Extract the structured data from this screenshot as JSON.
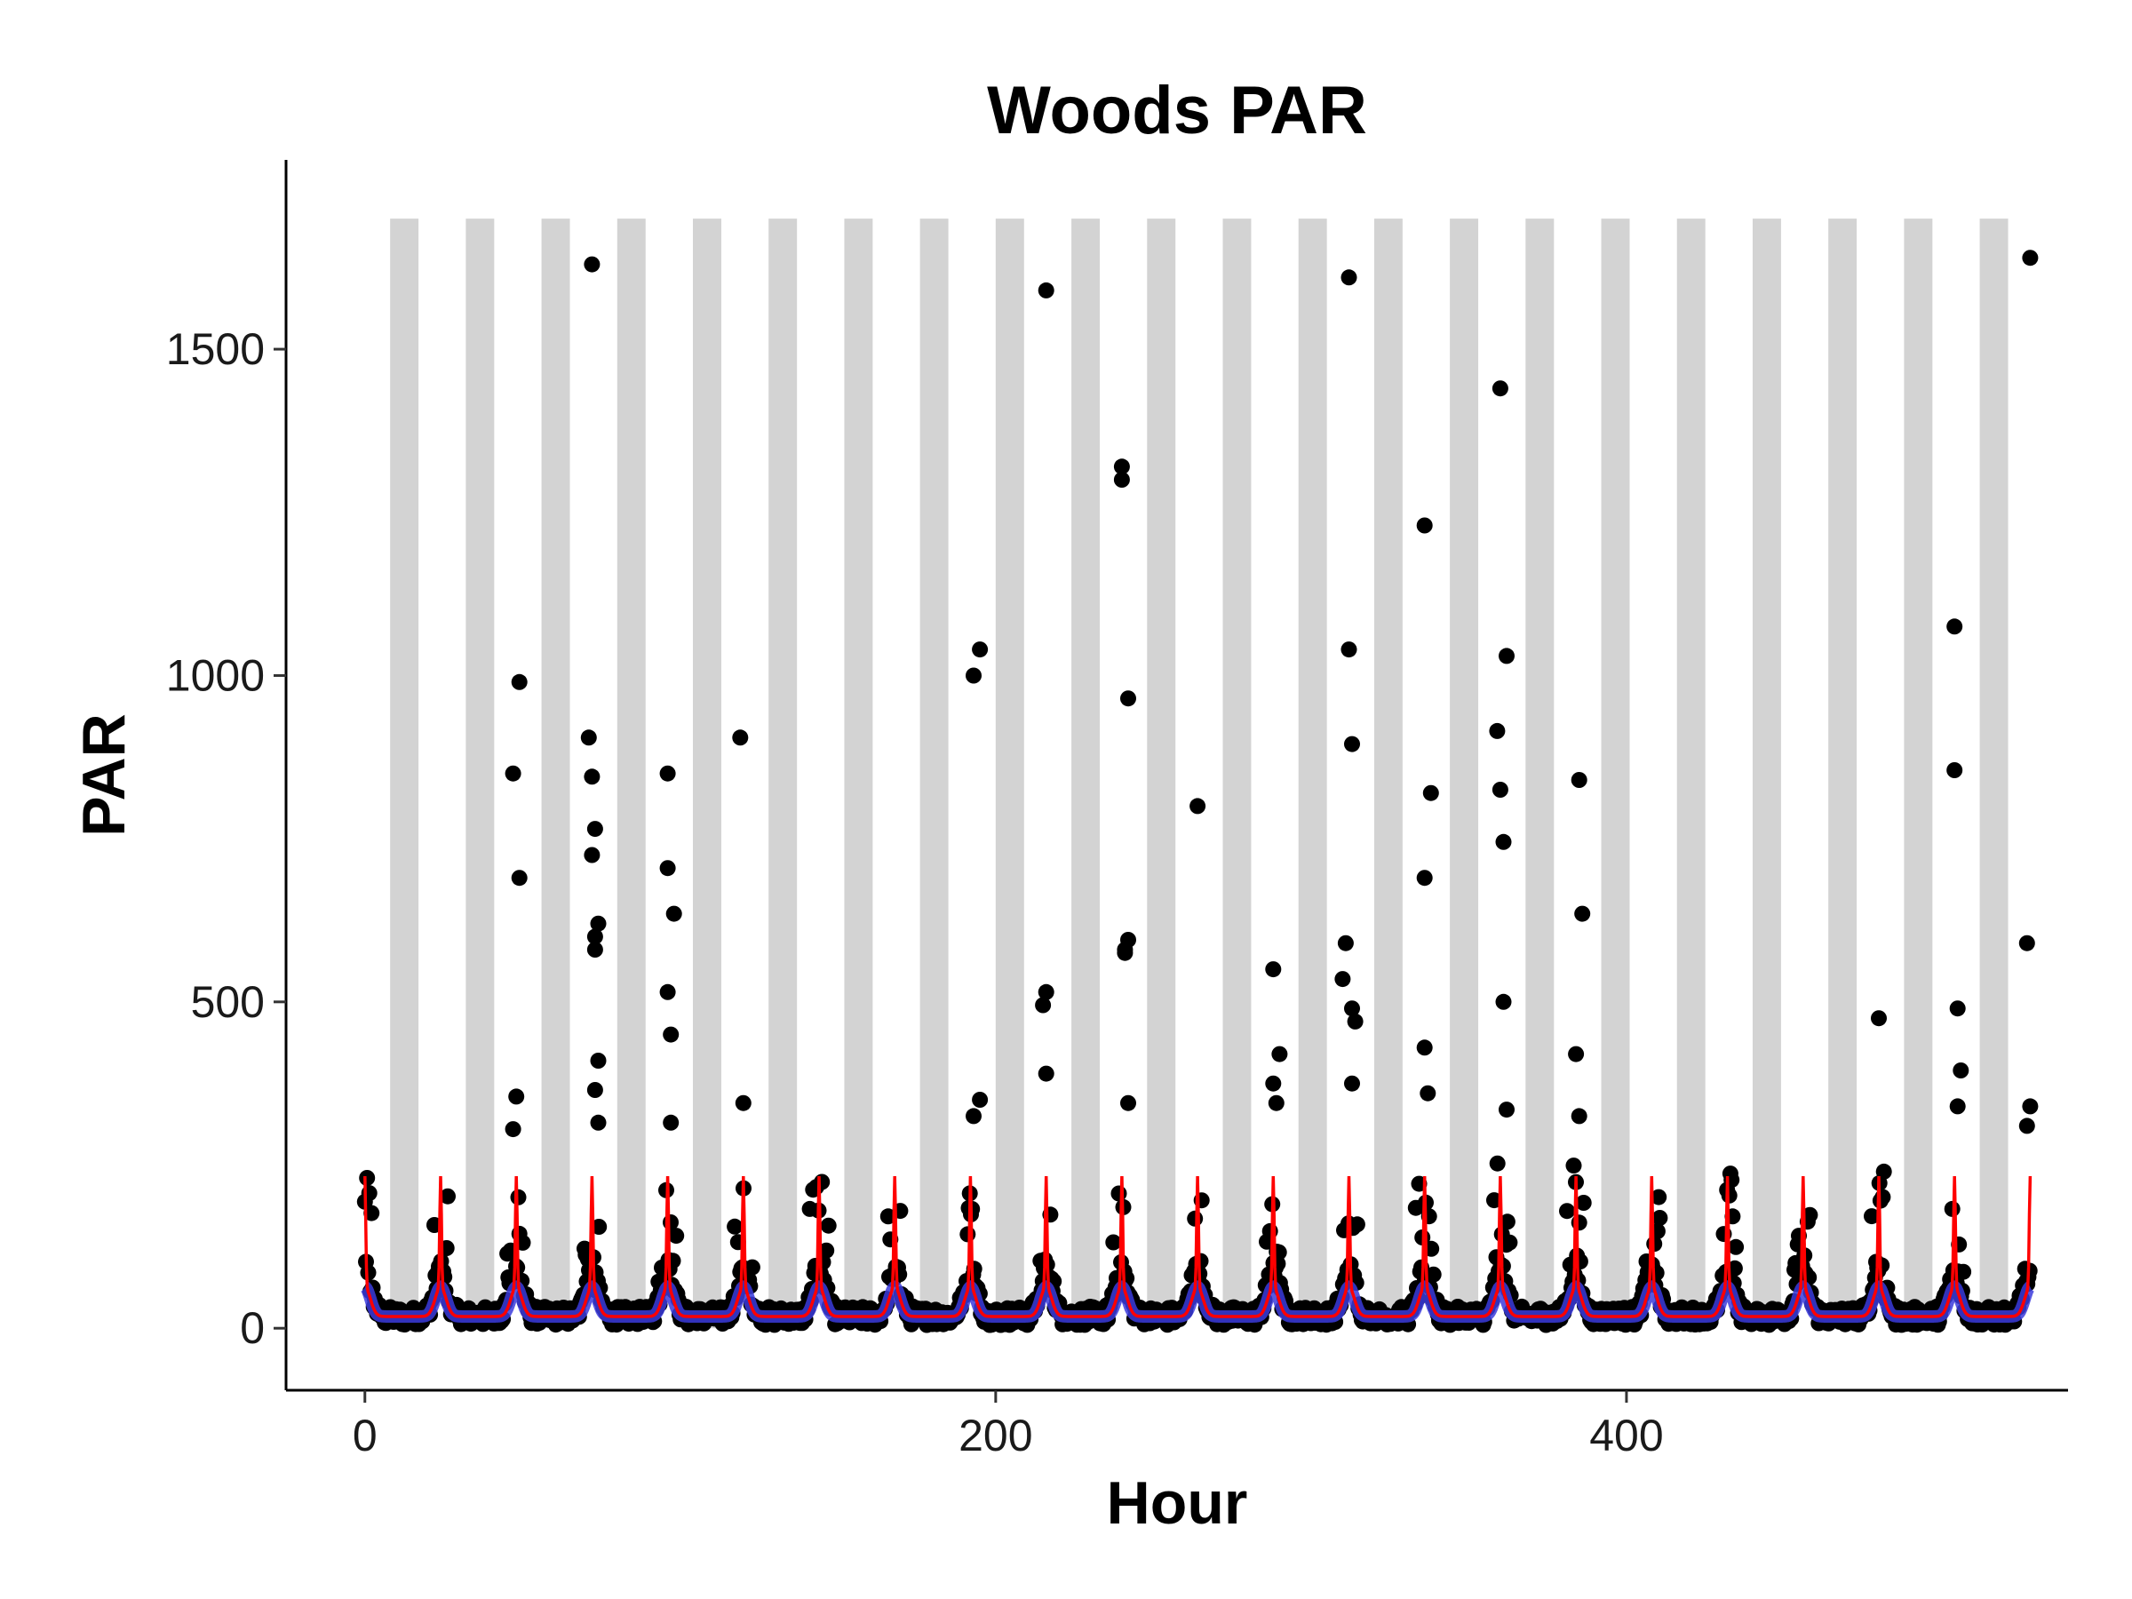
{
  "chart_data": {
    "type": "scatter",
    "title": "Woods PAR",
    "xlabel": "Hour",
    "ylabel": "PAR",
    "xlim": [
      -25,
      540
    ],
    "ylim": [
      -95,
      1790
    ],
    "x_ticks": [
      0,
      200,
      400
    ],
    "y_ticks": [
      0,
      500,
      1000,
      1500
    ],
    "grid": false,
    "legend": "none",
    "night_band_top": 1700,
    "night_bands": [
      [
        8,
        17
      ],
      [
        32,
        41
      ],
      [
        56,
        65
      ],
      [
        80,
        89
      ],
      [
        104,
        113
      ],
      [
        128,
        137
      ],
      [
        152,
        161
      ],
      [
        176,
        185
      ],
      [
        200,
        209
      ],
      [
        224,
        233
      ],
      [
        248,
        257
      ],
      [
        272,
        281
      ],
      [
        296,
        305
      ],
      [
        320,
        329
      ],
      [
        344,
        353
      ],
      [
        368,
        377
      ],
      [
        392,
        401
      ],
      [
        416,
        425
      ],
      [
        440,
        449
      ],
      [
        464,
        473
      ],
      [
        488,
        497
      ],
      [
        512,
        521
      ]
    ],
    "day_peaks": [
      0,
      24,
      48,
      72,
      96,
      120,
      144,
      168,
      192,
      216,
      240,
      264,
      288,
      312,
      336,
      360,
      384,
      408,
      432,
      456,
      480,
      504,
      528
    ],
    "outlier_points": [
      {
        "x": 49,
        "y": 990
      },
      {
        "x": 47,
        "y": 850
      },
      {
        "x": 49,
        "y": 690
      },
      {
        "x": 48,
        "y": 355
      },
      {
        "x": 47,
        "y": 305
      },
      {
        "x": 72,
        "y": 1630
      },
      {
        "x": 71,
        "y": 905
      },
      {
        "x": 72,
        "y": 845
      },
      {
        "x": 73,
        "y": 765
      },
      {
        "x": 72,
        "y": 725
      },
      {
        "x": 74,
        "y": 620
      },
      {
        "x": 73,
        "y": 600
      },
      {
        "x": 73,
        "y": 580
      },
      {
        "x": 74,
        "y": 410
      },
      {
        "x": 73,
        "y": 365
      },
      {
        "x": 74,
        "y": 315
      },
      {
        "x": 96,
        "y": 850
      },
      {
        "x": 96,
        "y": 705
      },
      {
        "x": 98,
        "y": 635
      },
      {
        "x": 96,
        "y": 515
      },
      {
        "x": 97,
        "y": 450
      },
      {
        "x": 97,
        "y": 315
      },
      {
        "x": 119,
        "y": 905
      },
      {
        "x": 120,
        "y": 345
      },
      {
        "x": 193,
        "y": 1000
      },
      {
        "x": 195,
        "y": 1040
      },
      {
        "x": 193,
        "y": 325
      },
      {
        "x": 195,
        "y": 350
      },
      {
        "x": 216,
        "y": 1590
      },
      {
        "x": 216,
        "y": 515
      },
      {
        "x": 215,
        "y": 495
      },
      {
        "x": 216,
        "y": 390
      },
      {
        "x": 240,
        "y": 1320
      },
      {
        "x": 240,
        "y": 1300
      },
      {
        "x": 242,
        "y": 965
      },
      {
        "x": 242,
        "y": 595
      },
      {
        "x": 241,
        "y": 580
      },
      {
        "x": 241,
        "y": 575
      },
      {
        "x": 242,
        "y": 345
      },
      {
        "x": 264,
        "y": 800
      },
      {
        "x": 288,
        "y": 550
      },
      {
        "x": 290,
        "y": 420
      },
      {
        "x": 288,
        "y": 375
      },
      {
        "x": 289,
        "y": 345
      },
      {
        "x": 312,
        "y": 1610
      },
      {
        "x": 312,
        "y": 1040
      },
      {
        "x": 313,
        "y": 895
      },
      {
        "x": 311,
        "y": 590
      },
      {
        "x": 310,
        "y": 535
      },
      {
        "x": 313,
        "y": 490
      },
      {
        "x": 314,
        "y": 470
      },
      {
        "x": 313,
        "y": 375
      },
      {
        "x": 336,
        "y": 1230
      },
      {
        "x": 338,
        "y": 820
      },
      {
        "x": 336,
        "y": 690
      },
      {
        "x": 336,
        "y": 430
      },
      {
        "x": 337,
        "y": 360
      },
      {
        "x": 360,
        "y": 1440
      },
      {
        "x": 362,
        "y": 1030
      },
      {
        "x": 359,
        "y": 915
      },
      {
        "x": 360,
        "y": 825
      },
      {
        "x": 361,
        "y": 745
      },
      {
        "x": 361,
        "y": 500
      },
      {
        "x": 362,
        "y": 335
      },
      {
        "x": 385,
        "y": 840
      },
      {
        "x": 386,
        "y": 635
      },
      {
        "x": 384,
        "y": 420
      },
      {
        "x": 385,
        "y": 325
      },
      {
        "x": 480,
        "y": 475
      },
      {
        "x": 504,
        "y": 1075
      },
      {
        "x": 504,
        "y": 855
      },
      {
        "x": 505,
        "y": 490
      },
      {
        "x": 506,
        "y": 395
      },
      {
        "x": 505,
        "y": 340
      },
      {
        "x": 528,
        "y": 1640
      },
      {
        "x": 527,
        "y": 590
      },
      {
        "x": 528,
        "y": 340
      },
      {
        "x": 527,
        "y": 310
      }
    ]
  }
}
